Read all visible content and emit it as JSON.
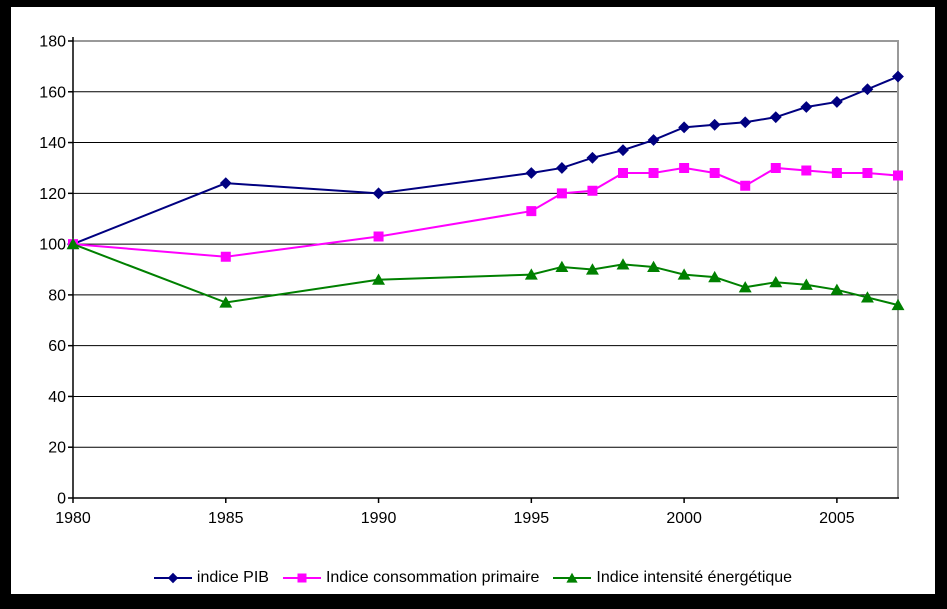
{
  "chart_data": {
    "type": "line",
    "x": [
      1980,
      1985,
      1990,
      1995,
      1996,
      1997,
      1998,
      1999,
      2000,
      2001,
      2002,
      2003,
      2004,
      2005,
      2006,
      2007
    ],
    "xticks": [
      1980,
      1985,
      1990,
      1995,
      2000,
      2005
    ],
    "yticks": [
      0,
      20,
      40,
      60,
      80,
      100,
      120,
      140,
      160,
      180
    ],
    "xlim": [
      1980,
      2007
    ],
    "ylim": [
      0,
      180
    ],
    "grid": true,
    "legend_position": "bottom",
    "series": [
      {
        "name": "indice PIB",
        "marker": "diamond",
        "color": "#000080",
        "values": [
          100,
          124,
          120,
          128,
          130,
          134,
          137,
          141,
          146,
          147,
          148,
          150,
          154,
          156,
          161,
          166
        ]
      },
      {
        "name": "Indice consommation primaire",
        "marker": "square",
        "color": "#FF00FF",
        "values": [
          100,
          95,
          103,
          113,
          120,
          121,
          128,
          128,
          130,
          128,
          123,
          130,
          129,
          128,
          128,
          127
        ]
      },
      {
        "name": "Indice intensité énergétique",
        "marker": "triangle",
        "color": "#008000",
        "values": [
          100,
          77,
          86,
          88,
          91,
          90,
          92,
          91,
          88,
          87,
          83,
          85,
          84,
          82,
          79,
          76
        ]
      }
    ],
    "colors": {
      "axis": "#000000",
      "gridline": "#000000",
      "wall": "#999999",
      "background": "#FFFFFF",
      "frame": "#000000",
      "tick_label": "#000000"
    }
  }
}
